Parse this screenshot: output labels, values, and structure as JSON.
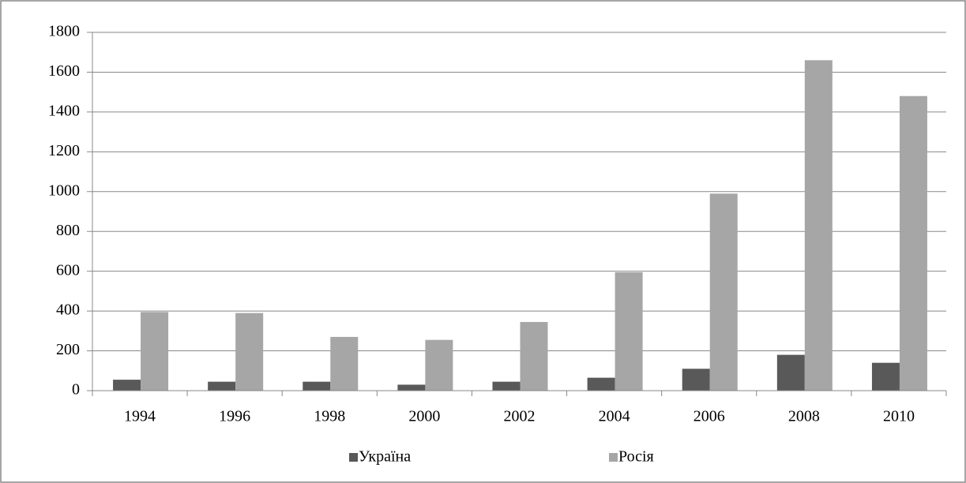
{
  "chart_data": {
    "type": "bar",
    "categories": [
      "1994",
      "1996",
      "1998",
      "2000",
      "2002",
      "2004",
      "2006",
      "2008",
      "2010"
    ],
    "series": [
      {
        "name": "Україна",
        "color": "#595959",
        "values": [
          55,
          45,
          45,
          30,
          45,
          65,
          110,
          180,
          140
        ]
      },
      {
        "name": "Росія",
        "color": "#a6a6a6",
        "values": [
          395,
          390,
          270,
          255,
          345,
          595,
          990,
          1660,
          1480
        ]
      }
    ],
    "ylim": [
      0,
      1800
    ],
    "yticks": [
      0,
      200,
      400,
      600,
      800,
      1000,
      1200,
      1400,
      1600,
      1800
    ],
    "grid": true,
    "legend": "bottom"
  }
}
